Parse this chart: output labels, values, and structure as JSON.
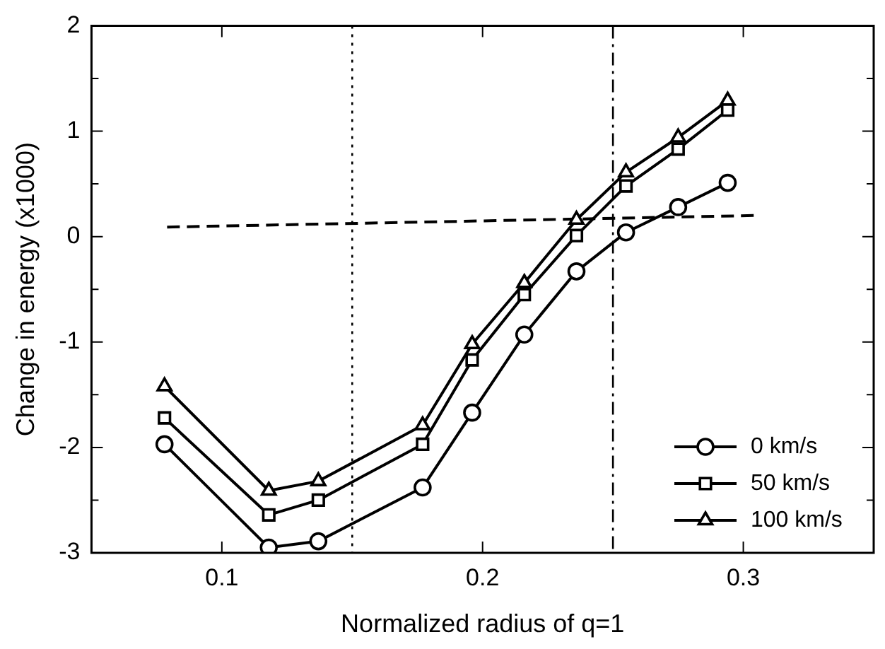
{
  "chart_data": {
    "type": "line",
    "xlabel": "Normalized radius of q=1",
    "ylabel": "Change in energy (x1000)",
    "x": [
      0.078,
      0.118,
      0.137,
      0.177,
      0.196,
      0.216,
      0.236,
      0.255,
      0.275,
      0.294
    ],
    "series": [
      {
        "name": "0 km/s",
        "color": "#000000",
        "marker": "circle",
        "values": [
          -1.97,
          -2.95,
          -2.89,
          -2.38,
          -1.67,
          -0.93,
          -0.33,
          0.04,
          0.28,
          0.51
        ]
      },
      {
        "name": "50 km/s",
        "color": "#000000",
        "marker": "square",
        "values": [
          -1.72,
          -2.64,
          -2.5,
          -1.97,
          -1.17,
          -0.55,
          0.01,
          0.48,
          0.83,
          1.2
        ]
      },
      {
        "name": "100 km/s",
        "color": "#000000",
        "marker": "triangle",
        "values": [
          -1.42,
          -2.41,
          -2.32,
          -1.79,
          -1.02,
          -0.44,
          0.16,
          0.61,
          0.94,
          1.29
        ]
      },
      {
        "type": "line",
        "color": "#000000",
        "marker": "none",
        "line_style": "dashed",
        "x": [
          0.079,
          0.3045
        ],
        "values": [
          0.09,
          0.2
        ]
      }
    ],
    "ref_lines": [
      {
        "axis": "x",
        "value": 0.15,
        "color": "#000000",
        "line_style": "dotted"
      },
      {
        "axis": "x",
        "value": 0.25,
        "color": "#000000",
        "line_style": "dashdot"
      }
    ],
    "xlim": [
      0.05,
      0.35
    ],
    "xticks": [
      0.1,
      0.2,
      0.3
    ],
    "ylim": [
      -3,
      2
    ],
    "yticks": [
      -3,
      {
        "value": -2.5,
        "label": null
      },
      -2,
      {
        "value": -1.5,
        "label": null
      },
      -1,
      {
        "value": -0.5,
        "label": null
      },
      0,
      {
        "value": 0.5,
        "label": null
      },
      1,
      {
        "value": 1.5,
        "label": null
      },
      2
    ],
    "grid": false,
    "legend": "bottom right"
  }
}
